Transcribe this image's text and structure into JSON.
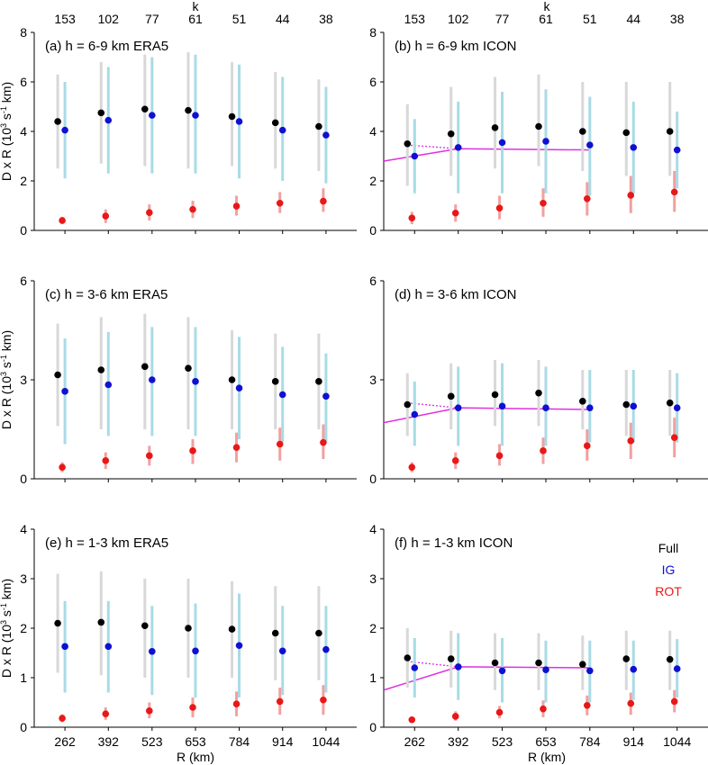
{
  "figure": {
    "x_label": "R (km)",
    "y_label_prefix": "D x R (10",
    "y_label_exp1": "3",
    "y_label_mid": " s",
    "y_label_exp2": "-1",
    "y_label_suffix": " km)",
    "top_axis_label": "k",
    "top_ticks": [
      "153",
      "102",
      "77",
      "61",
      "51",
      "44",
      "38"
    ]
  },
  "legend": [
    {
      "label": "Full",
      "color": "#000000"
    },
    {
      "label": "IG",
      "color": "#1010d0"
    },
    {
      "label": "ROT",
      "color": "#e81818"
    }
  ],
  "colors": {
    "full": "#000000",
    "full_bar": "#d8d8d8",
    "ig": "#1010d0",
    "ig_bar": "#a8dbe6",
    "rot": "#e81818",
    "rot_bar": "#f2a0a0",
    "fit": "#e030e0"
  },
  "chart_data": [
    {
      "type": "scatter",
      "title": "(a) h = 6-9 km ERA5",
      "x": [
        262,
        392,
        523,
        653,
        784,
        914,
        1044
      ],
      "ylim": [
        0,
        8
      ],
      "yticks": [
        0,
        2,
        4,
        6,
        8
      ],
      "series": [
        {
          "name": "Full",
          "y": [
            4.4,
            4.75,
            4.9,
            4.85,
            4.6,
            4.35,
            4.2
          ],
          "lo": [
            2.5,
            2.7,
            2.6,
            2.5,
            2.6,
            2.5,
            2.4
          ],
          "hi": [
            6.3,
            6.8,
            7.1,
            7.2,
            6.8,
            6.4,
            6.1
          ]
        },
        {
          "name": "IG",
          "y": [
            4.05,
            4.45,
            4.65,
            4.65,
            4.4,
            4.05,
            3.85
          ],
          "lo": [
            2.1,
            2.3,
            2.3,
            2.3,
            2.1,
            2.0,
            1.9
          ],
          "hi": [
            6.0,
            6.6,
            7.0,
            7.1,
            6.7,
            6.2,
            5.8
          ]
        },
        {
          "name": "ROT",
          "y": [
            0.4,
            0.58,
            0.72,
            0.85,
            0.98,
            1.1,
            1.18
          ],
          "lo": [
            0.25,
            0.3,
            0.4,
            0.5,
            0.6,
            0.7,
            0.75
          ],
          "hi": [
            0.55,
            0.85,
            1.05,
            1.2,
            1.4,
            1.55,
            1.7
          ]
        }
      ]
    },
    {
      "type": "scatter",
      "title": "(b) h = 6-9 km ICON",
      "x": [
        262,
        392,
        523,
        653,
        784,
        914,
        1044
      ],
      "ylim": [
        0,
        8
      ],
      "yticks": [
        0,
        2,
        4,
        6,
        8
      ],
      "series": [
        {
          "name": "Full",
          "y": [
            3.5,
            3.9,
            4.15,
            4.2,
            4.0,
            3.95,
            4.0
          ],
          "lo": [
            1.8,
            2.2,
            2.5,
            2.6,
            2.4,
            2.2,
            2.2
          ],
          "hi": [
            5.1,
            5.8,
            6.2,
            6.3,
            6.0,
            6.0,
            6.0
          ]
        },
        {
          "name": "IG",
          "y": [
            3.0,
            3.35,
            3.55,
            3.6,
            3.45,
            3.35,
            3.25
          ],
          "lo": [
            1.5,
            1.5,
            1.5,
            1.5,
            1.4,
            1.5,
            1.7
          ],
          "hi": [
            4.5,
            5.2,
            5.6,
            5.7,
            5.4,
            5.2,
            4.8
          ]
        },
        {
          "name": "ROT",
          "y": [
            0.5,
            0.7,
            0.9,
            1.1,
            1.28,
            1.42,
            1.55
          ],
          "lo": [
            0.25,
            0.35,
            0.45,
            0.55,
            0.6,
            0.7,
            0.75
          ],
          "hi": [
            0.75,
            1.05,
            1.4,
            1.7,
            1.95,
            2.2,
            2.4
          ]
        }
      ],
      "fit_solid": [
        [
          170,
          2.8
        ],
        [
          392,
          3.3
        ],
        [
          786,
          3.25
        ]
      ],
      "fit_dotted": [
        [
          240,
          3.45
        ],
        [
          392,
          3.3
        ]
      ]
    },
    {
      "type": "scatter",
      "title": "(c) h = 3-6 km ERA5",
      "x": [
        262,
        392,
        523,
        653,
        784,
        914,
        1044
      ],
      "ylim": [
        0,
        6
      ],
      "yticks": [
        0,
        3,
        6
      ],
      "series": [
        {
          "name": "Full",
          "y": [
            3.15,
            3.3,
            3.4,
            3.35,
            3.0,
            2.95,
            2.95
          ],
          "lo": [
            1.6,
            1.5,
            1.5,
            1.5,
            1.5,
            1.5,
            1.5
          ],
          "hi": [
            4.7,
            4.9,
            5.0,
            4.9,
            4.5,
            4.4,
            4.4
          ]
        },
        {
          "name": "IG",
          "y": [
            2.65,
            2.85,
            3.0,
            2.95,
            2.75,
            2.55,
            2.5
          ],
          "lo": [
            1.05,
            1.3,
            1.3,
            1.3,
            1.2,
            1.1,
            1.1
          ],
          "hi": [
            4.25,
            4.45,
            4.6,
            4.6,
            4.3,
            4.0,
            3.8
          ]
        },
        {
          "name": "ROT",
          "y": [
            0.35,
            0.55,
            0.7,
            0.85,
            0.95,
            1.05,
            1.1
          ],
          "lo": [
            0.2,
            0.3,
            0.4,
            0.45,
            0.5,
            0.55,
            0.6
          ],
          "hi": [
            0.5,
            0.8,
            1.0,
            1.2,
            1.4,
            1.55,
            1.65
          ]
        }
      ]
    },
    {
      "type": "scatter",
      "title": "(d) h = 3-6 km ICON",
      "x": [
        262,
        392,
        523,
        653,
        784,
        914,
        1044
      ],
      "ylim": [
        0,
        6
      ],
      "yticks": [
        0,
        3,
        6
      ],
      "series": [
        {
          "name": "Full",
          "y": [
            2.25,
            2.5,
            2.55,
            2.6,
            2.35,
            2.25,
            2.3
          ],
          "lo": [
            1.3,
            1.5,
            1.6,
            1.6,
            1.5,
            1.3,
            1.3
          ],
          "hi": [
            3.2,
            3.5,
            3.6,
            3.6,
            3.3,
            3.3,
            3.3
          ]
        },
        {
          "name": "IG",
          "y": [
            1.95,
            2.15,
            2.2,
            2.15,
            2.15,
            2.2,
            2.15
          ],
          "lo": [
            1.0,
            1.0,
            1.0,
            1.0,
            1.1,
            1.1,
            1.1
          ],
          "hi": [
            2.95,
            3.4,
            3.5,
            3.4,
            3.3,
            3.3,
            3.2
          ]
        },
        {
          "name": "ROT",
          "y": [
            0.35,
            0.55,
            0.7,
            0.85,
            1.0,
            1.15,
            1.25
          ],
          "lo": [
            0.2,
            0.3,
            0.4,
            0.45,
            0.55,
            0.6,
            0.65
          ],
          "hi": [
            0.5,
            0.8,
            1.05,
            1.25,
            1.5,
            1.7,
            1.85
          ]
        }
      ],
      "fit_solid": [
        [
          170,
          1.7
        ],
        [
          392,
          2.15
        ],
        [
          786,
          2.1
        ]
      ],
      "fit_dotted": [
        [
          240,
          2.3
        ],
        [
          392,
          2.15
        ]
      ]
    },
    {
      "type": "scatter",
      "title": "(e) h = 1-3 km ERA5",
      "x": [
        262,
        392,
        523,
        653,
        784,
        914,
        1044
      ],
      "ylim": [
        0,
        4
      ],
      "yticks": [
        0,
        1,
        2,
        3,
        4
      ],
      "series": [
        {
          "name": "Full",
          "y": [
            2.1,
            2.12,
            2.05,
            2.0,
            1.98,
            1.9,
            1.9
          ],
          "lo": [
            1.1,
            1.05,
            1.0,
            1.0,
            1.0,
            0.95,
            0.95
          ],
          "hi": [
            3.1,
            3.15,
            3.0,
            3.0,
            2.95,
            2.85,
            2.85
          ]
        },
        {
          "name": "IG",
          "y": [
            1.63,
            1.63,
            1.53,
            1.54,
            1.65,
            1.54,
            1.57
          ],
          "lo": [
            0.7,
            0.7,
            0.65,
            0.6,
            0.6,
            0.65,
            0.7
          ],
          "hi": [
            2.55,
            2.55,
            2.45,
            2.5,
            2.7,
            2.45,
            2.45
          ]
        },
        {
          "name": "ROT",
          "y": [
            0.18,
            0.27,
            0.33,
            0.4,
            0.47,
            0.52,
            0.55
          ],
          "lo": [
            0.1,
            0.15,
            0.18,
            0.2,
            0.22,
            0.25,
            0.25
          ],
          "hi": [
            0.26,
            0.4,
            0.5,
            0.6,
            0.72,
            0.8,
            0.85
          ]
        }
      ]
    },
    {
      "type": "scatter",
      "title": "(f) h = 1-3 km ICON",
      "x": [
        262,
        392,
        523,
        653,
        784,
        914,
        1044
      ],
      "ylim": [
        0,
        4
      ],
      "yticks": [
        0,
        1,
        2,
        3,
        4
      ],
      "series": [
        {
          "name": "Full",
          "y": [
            1.4,
            1.38,
            1.3,
            1.3,
            1.27,
            1.38,
            1.37
          ],
          "lo": [
            0.8,
            0.8,
            0.75,
            0.75,
            0.75,
            0.75,
            0.75
          ],
          "hi": [
            2.0,
            1.95,
            1.9,
            1.9,
            1.85,
            1.95,
            1.95
          ]
        },
        {
          "name": "IG",
          "y": [
            1.2,
            1.22,
            1.14,
            1.16,
            1.14,
            1.17,
            1.18
          ],
          "lo": [
            0.6,
            0.55,
            0.5,
            0.5,
            0.5,
            0.55,
            0.6
          ],
          "hi": [
            1.8,
            1.9,
            1.8,
            1.75,
            1.75,
            1.75,
            1.78
          ]
        },
        {
          "name": "ROT",
          "y": [
            0.15,
            0.22,
            0.3,
            0.37,
            0.44,
            0.48,
            0.52
          ],
          "lo": [
            0.1,
            0.13,
            0.18,
            0.2,
            0.24,
            0.25,
            0.3
          ],
          "hi": [
            0.2,
            0.32,
            0.43,
            0.54,
            0.64,
            0.7,
            0.75
          ]
        }
      ],
      "fit_solid": [
        [
          170,
          0.75
        ],
        [
          392,
          1.22
        ],
        [
          786,
          1.2
        ]
      ],
      "fit_dotted": [
        [
          240,
          1.33
        ],
        [
          392,
          1.22
        ]
      ]
    }
  ]
}
